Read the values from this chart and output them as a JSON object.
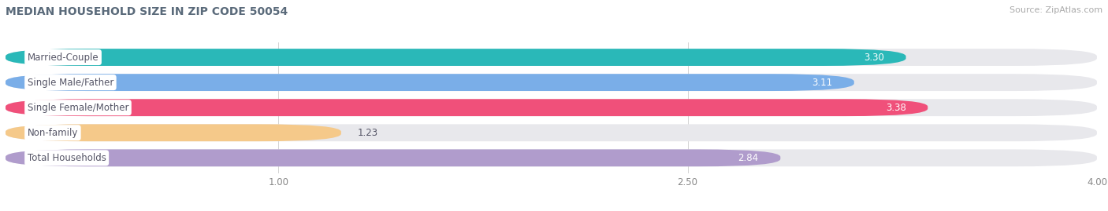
{
  "title": "MEDIAN HOUSEHOLD SIZE IN ZIP CODE 50054",
  "source": "Source: ZipAtlas.com",
  "categories": [
    "Married-Couple",
    "Single Male/Father",
    "Single Female/Mother",
    "Non-family",
    "Total Households"
  ],
  "values": [
    3.3,
    3.11,
    3.38,
    1.23,
    2.84
  ],
  "bar_colors": [
    "#2ab8b8",
    "#7aaee8",
    "#f0507a",
    "#f5c98a",
    "#b09ccc"
  ],
  "xlim_data": [
    0,
    4.0
  ],
  "xticks": [
    1.0,
    2.5,
    4.0
  ],
  "title_fontsize": 10,
  "source_fontsize": 8,
  "label_fontsize": 8.5,
  "value_fontsize": 8.5,
  "background_color": "#ffffff",
  "bar_bg_color": "#e8e8ec",
  "label_text_color": "#555566",
  "value_text_color_light": "#ffffff",
  "value_text_color_dark": "#555566"
}
